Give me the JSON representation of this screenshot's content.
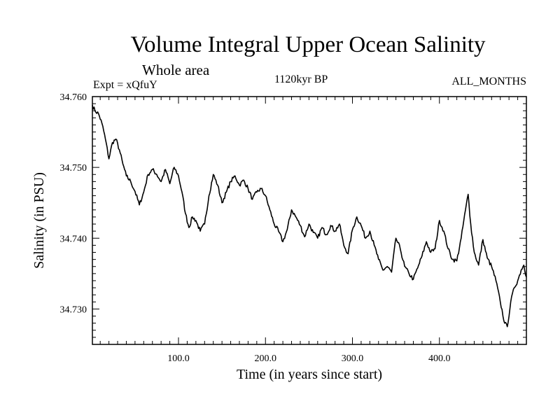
{
  "chart_data": {
    "type": "line",
    "title": "Volume Integral Upper Ocean Salinity",
    "subtitle": "Whole area",
    "expt_label": "Expt = xQfuY",
    "period_label": "1120kyr BP",
    "months_label": "ALL_MONTHS",
    "xlabel": "Time (in years since start)",
    "ylabel": "Salinity (in PSU)",
    "xlim": [
      1,
      500
    ],
    "ylim": [
      34.725,
      34.76
    ],
    "x_ticks": [
      {
        "value": 100,
        "label": "100.0"
      },
      {
        "value": 200,
        "label": "200.0"
      },
      {
        "value": 300,
        "label": "300.0"
      },
      {
        "value": 400,
        "label": "400.0"
      }
    ],
    "y_ticks": [
      {
        "value": 34.73,
        "label": "34.730"
      },
      {
        "value": 34.74,
        "label": "34.740"
      },
      {
        "value": 34.75,
        "label": "34.750"
      },
      {
        "value": 34.76,
        "label": "34.760"
      }
    ],
    "line_color": "#000000",
    "series": [
      {
        "name": "Salinity",
        "points": [
          [
            1,
            34.7588
          ],
          [
            4,
            34.758
          ],
          [
            8,
            34.7576
          ],
          [
            12,
            34.7562
          ],
          [
            16,
            34.754
          ],
          [
            20,
            34.7512
          ],
          [
            24,
            34.7535
          ],
          [
            28,
            34.754
          ],
          [
            32,
            34.7525
          ],
          [
            36,
            34.7505
          ],
          [
            40,
            34.7488
          ],
          [
            45,
            34.748
          ],
          [
            50,
            34.7466
          ],
          [
            55,
            34.7447
          ],
          [
            60,
            34.7465
          ],
          [
            65,
            34.749
          ],
          [
            70,
            34.7497
          ],
          [
            75,
            34.749
          ],
          [
            80,
            34.748
          ],
          [
            85,
            34.7497
          ],
          [
            90,
            34.7477
          ],
          [
            95,
            34.75
          ],
          [
            100,
            34.7488
          ],
          [
            104,
            34.7465
          ],
          [
            108,
            34.7435
          ],
          [
            112,
            34.7415
          ],
          [
            116,
            34.743
          ],
          [
            120,
            34.7425
          ],
          [
            125,
            34.741
          ],
          [
            130,
            34.742
          ],
          [
            135,
            34.746
          ],
          [
            140,
            34.749
          ],
          [
            145,
            34.7475
          ],
          [
            150,
            34.745
          ],
          [
            155,
            34.7465
          ],
          [
            160,
            34.748
          ],
          [
            165,
            34.7488
          ],
          [
            170,
            34.7475
          ],
          [
            175,
            34.7482
          ],
          [
            180,
            34.747
          ],
          [
            185,
            34.7455
          ],
          [
            190,
            34.7465
          ],
          [
            195,
            34.747
          ],
          [
            200,
            34.746
          ],
          [
            205,
            34.744
          ],
          [
            210,
            34.742
          ],
          [
            215,
            34.741
          ],
          [
            220,
            34.7395
          ],
          [
            225,
            34.7412
          ],
          [
            230,
            34.744
          ],
          [
            235,
            34.743
          ],
          [
            240,
            34.7418
          ],
          [
            245,
            34.7402
          ],
          [
            250,
            34.742
          ],
          [
            255,
            34.7408
          ],
          [
            260,
            34.74
          ],
          [
            265,
            34.7415
          ],
          [
            270,
            34.7405
          ],
          [
            275,
            34.7418
          ],
          [
            280,
            34.741
          ],
          [
            285,
            34.742
          ],
          [
            290,
            34.739
          ],
          [
            295,
            34.7378
          ],
          [
            300,
            34.7412
          ],
          [
            305,
            34.743
          ],
          [
            310,
            34.7418
          ],
          [
            315,
            34.74
          ],
          [
            320,
            34.741
          ],
          [
            325,
            34.739
          ],
          [
            330,
            34.737
          ],
          [
            335,
            34.7355
          ],
          [
            340,
            34.736
          ],
          [
            345,
            34.7352
          ],
          [
            350,
            34.74
          ],
          [
            355,
            34.7385
          ],
          [
            360,
            34.736
          ],
          [
            365,
            34.735
          ],
          [
            370,
            34.7342
          ],
          [
            375,
            34.7358
          ],
          [
            380,
            34.7375
          ],
          [
            385,
            34.7395
          ],
          [
            390,
            34.738
          ],
          [
            395,
            34.7385
          ],
          [
            400,
            34.7425
          ],
          [
            405,
            34.741
          ],
          [
            410,
            34.7385
          ],
          [
            415,
            34.737
          ],
          [
            420,
            34.7368
          ],
          [
            425,
            34.74
          ],
          [
            430,
            34.744
          ],
          [
            433,
            34.7462
          ],
          [
            436,
            34.742
          ],
          [
            440,
            34.738
          ],
          [
            445,
            34.7362
          ],
          [
            450,
            34.7398
          ],
          [
            455,
            34.7372
          ],
          [
            460,
            34.736
          ],
          [
            465,
            34.734
          ],
          [
            470,
            34.731
          ],
          [
            475,
            34.728
          ],
          [
            478,
            34.7275
          ],
          [
            482,
            34.731
          ],
          [
            486,
            34.733
          ],
          [
            490,
            34.734
          ],
          [
            494,
            34.7355
          ],
          [
            497,
            34.7362
          ],
          [
            500,
            34.7345
          ]
        ]
      }
    ]
  }
}
